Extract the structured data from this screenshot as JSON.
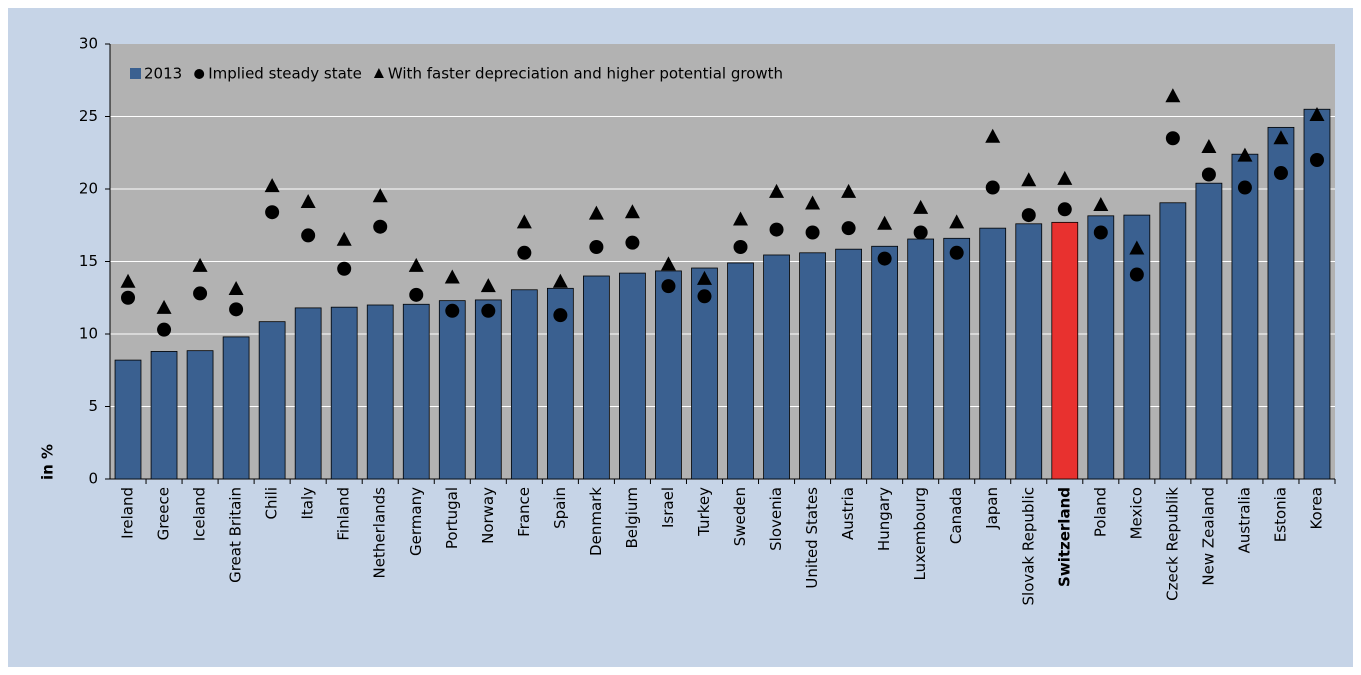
{
  "chart_data": {
    "type": "bar",
    "y_label": "in %",
    "categories": [
      "Ireland",
      "Greece",
      "Iceland",
      "Great Britain",
      "Chili",
      "Italy",
      "Finland",
      "Netherlands",
      "Germany",
      "Portugal",
      "Norway",
      "France",
      "Spain",
      "Denmark",
      "Belgium",
      "Israel",
      "Turkey",
      "Sweden",
      "Slovenia",
      "United States",
      "Austria",
      "Hungary",
      "Luxembourg",
      "Canada",
      "Japan",
      "Slovak Republic",
      "Switzerland",
      "Poland",
      "Mexico",
      "Czeck Republik",
      "New Zealand",
      "Australia",
      "Estonia",
      "Korea"
    ],
    "series": [
      {
        "name": "2013",
        "marker": "bar",
        "color": "#3a6090",
        "values": [
          8.2,
          8.8,
          8.85,
          9.8,
          10.85,
          11.8,
          11.85,
          12.0,
          12.05,
          12.3,
          12.35,
          13.05,
          13.15,
          14.0,
          14.2,
          14.35,
          14.55,
          14.9,
          15.45,
          15.6,
          15.85,
          16.05,
          16.55,
          16.6,
          17.3,
          17.6,
          17.7,
          18.15,
          18.2,
          19.05,
          20.4,
          22.4,
          24.25,
          25.5
        ]
      },
      {
        "name": "Implied steady state",
        "marker": "circle",
        "color": "#000000",
        "values": [
          12.5,
          10.3,
          12.8,
          11.7,
          18.4,
          16.8,
          14.5,
          17.4,
          12.7,
          11.6,
          11.6,
          15.6,
          11.3,
          16.0,
          16.3,
          13.3,
          12.6,
          16.0,
          17.2,
          17.0,
          17.3,
          15.2,
          17.0,
          15.6,
          20.1,
          18.2,
          18.6,
          17.0,
          14.1,
          23.5,
          21.0,
          20.1,
          21.1,
          22.0
        ]
      },
      {
        "name": "With faster depreciation and higher potential growth",
        "marker": "triangle",
        "color": "#000000",
        "values": [
          13.6,
          11.8,
          14.7,
          13.1,
          20.2,
          19.1,
          16.5,
          19.5,
          14.7,
          13.9,
          13.3,
          17.7,
          13.6,
          18.3,
          18.4,
          14.8,
          13.8,
          17.9,
          19.8,
          19.0,
          19.8,
          17.6,
          18.7,
          17.7,
          23.6,
          20.6,
          20.7,
          18.9,
          15.9,
          26.4,
          22.9,
          22.3,
          23.5,
          25.1
        ]
      }
    ],
    "highlight": {
      "category": "Switzerland",
      "color": "#e8312f"
    },
    "ylim": [
      0,
      30
    ],
    "yticks": [
      0,
      5,
      10,
      15,
      20,
      25,
      30
    ],
    "grid": true,
    "legend": "top-left"
  }
}
